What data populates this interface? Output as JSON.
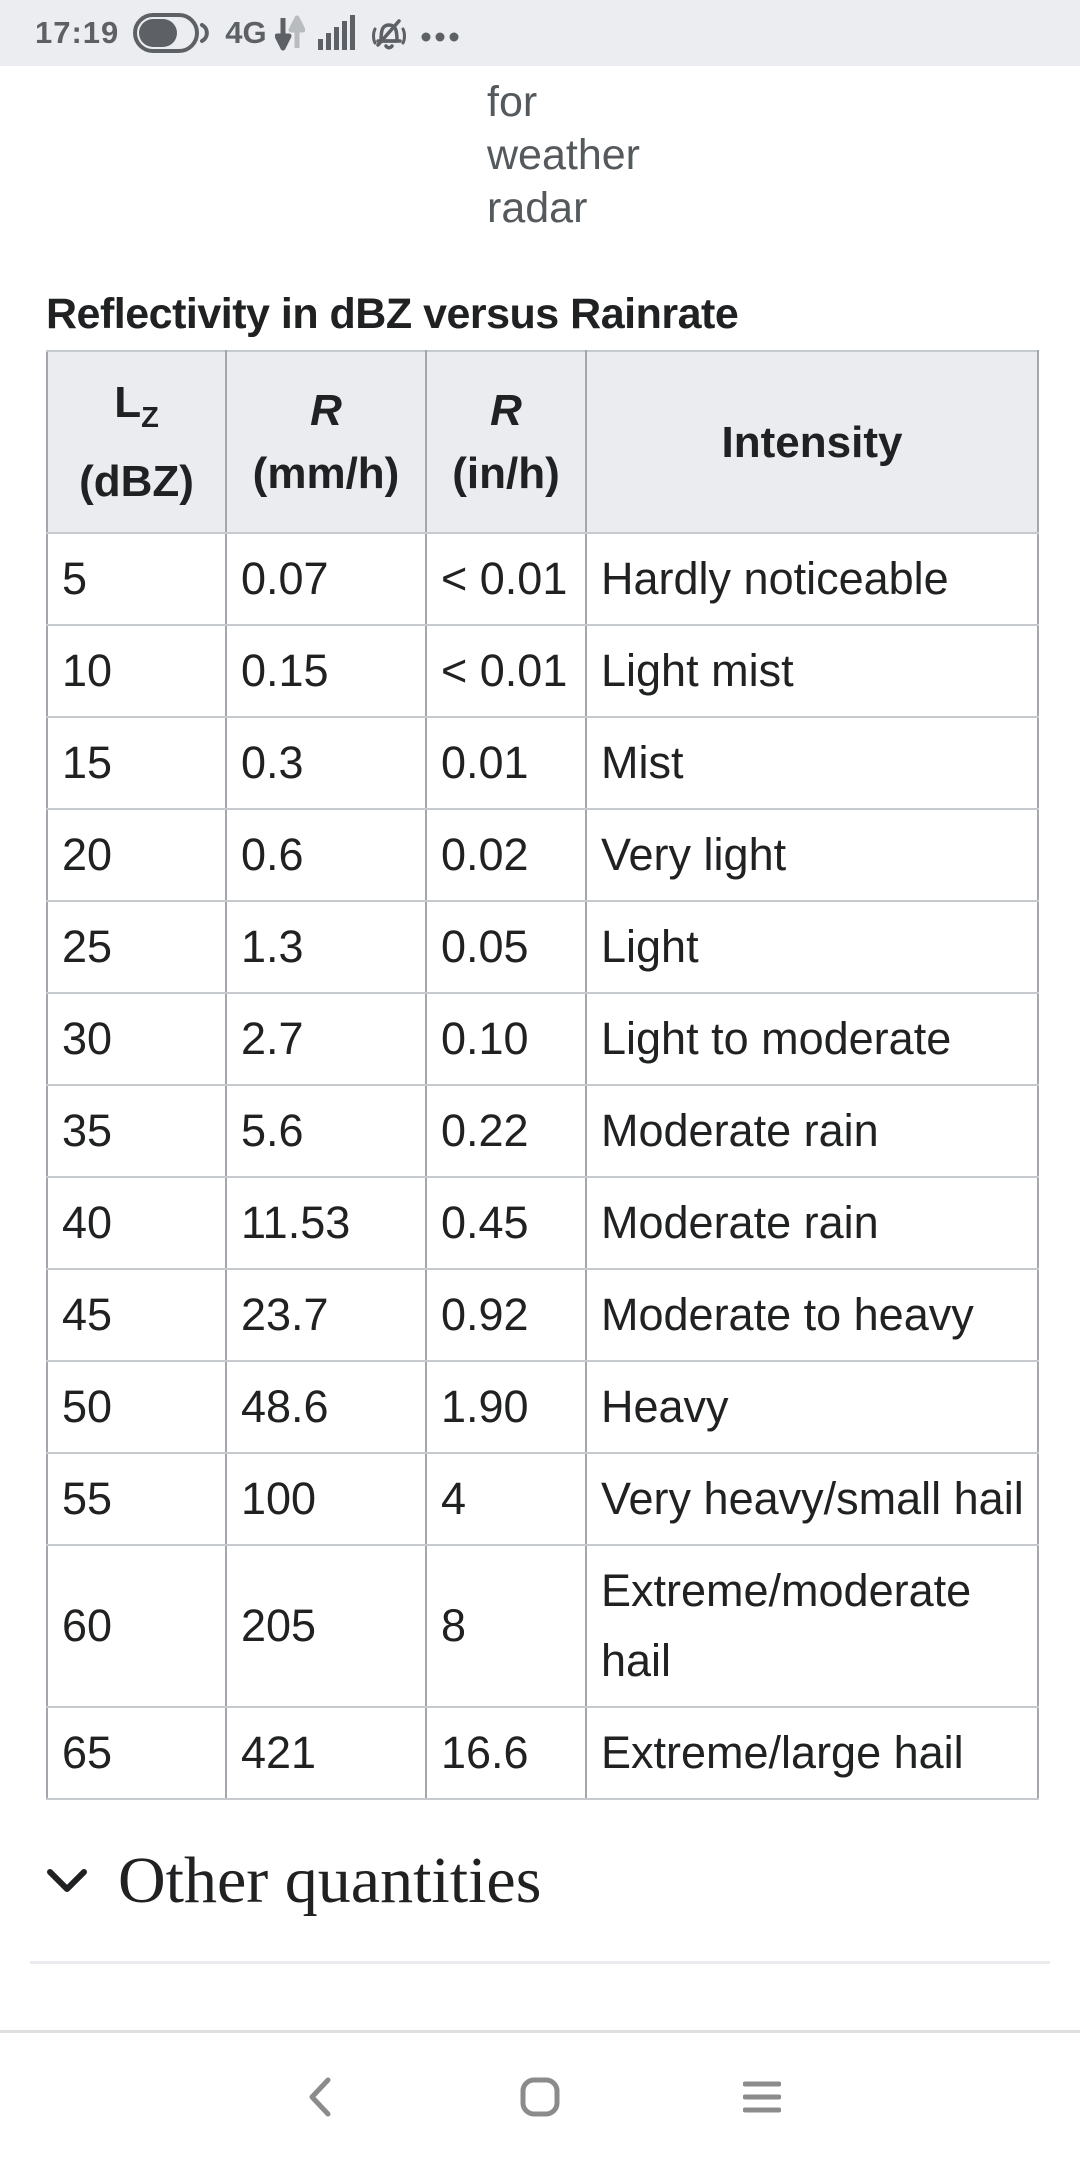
{
  "status_bar": {
    "time": "17:19",
    "network_label": "4G",
    "icon_names": [
      "battery-icon",
      "data-arrows-icon",
      "signal-bars-icon",
      "mute-bell-icon",
      "ellipsis-icon"
    ],
    "icon_color": "#5d6165",
    "background": "#ebedf0"
  },
  "page": {
    "caption_fragment_lines": {
      "l1": "for",
      "l2": "weather",
      "l3": "radar"
    },
    "table_title": "Reflectivity in dBZ versus Rainrate",
    "table": {
      "col1": {
        "symbol": "L",
        "subscript": "Z",
        "unit": "(dBZ)"
      },
      "col2": {
        "symbol": "R",
        "unit": "(mm/h)"
      },
      "col3": {
        "symbol": "R",
        "unit": "(in/h)"
      },
      "col4": {
        "label": "Intensity"
      },
      "rows": [
        [
          "5",
          "0.07",
          "< 0.01",
          "Hardly noticeable"
        ],
        [
          "10",
          "0.15",
          "< 0.01",
          "Light mist"
        ],
        [
          "15",
          "0.3",
          "0.01",
          "Mist"
        ],
        [
          "20",
          "0.6",
          "0.02",
          "Very light"
        ],
        [
          "25",
          "1.3",
          "0.05",
          "Light"
        ],
        [
          "30",
          "2.7",
          "0.10",
          "Light to moderate"
        ],
        [
          "35",
          "5.6",
          "0.22",
          "Moderate rain"
        ],
        [
          "40",
          "11.53",
          "0.45",
          "Moderate rain"
        ],
        [
          "45",
          "23.7",
          "0.92",
          "Moderate to heavy"
        ],
        [
          "50",
          "48.6",
          "1.90",
          "Heavy"
        ],
        [
          "55",
          "100",
          "4",
          "Very heavy/small hail"
        ],
        [
          "60",
          "205",
          "8",
          "Extreme/moderate hail"
        ],
        [
          "65",
          "421",
          "16.6",
          "Extreme/large hail"
        ]
      ],
      "header_bg": "#eaecf0",
      "border_vertical": "#a2a7ad",
      "border_horizontal": "#c6c9ce"
    },
    "section_heading": "Other quantities"
  },
  "nav_bar": {
    "icon_names": [
      "back-icon",
      "home-icon",
      "menu-icon"
    ],
    "icon_color": "#8b8b8b"
  }
}
